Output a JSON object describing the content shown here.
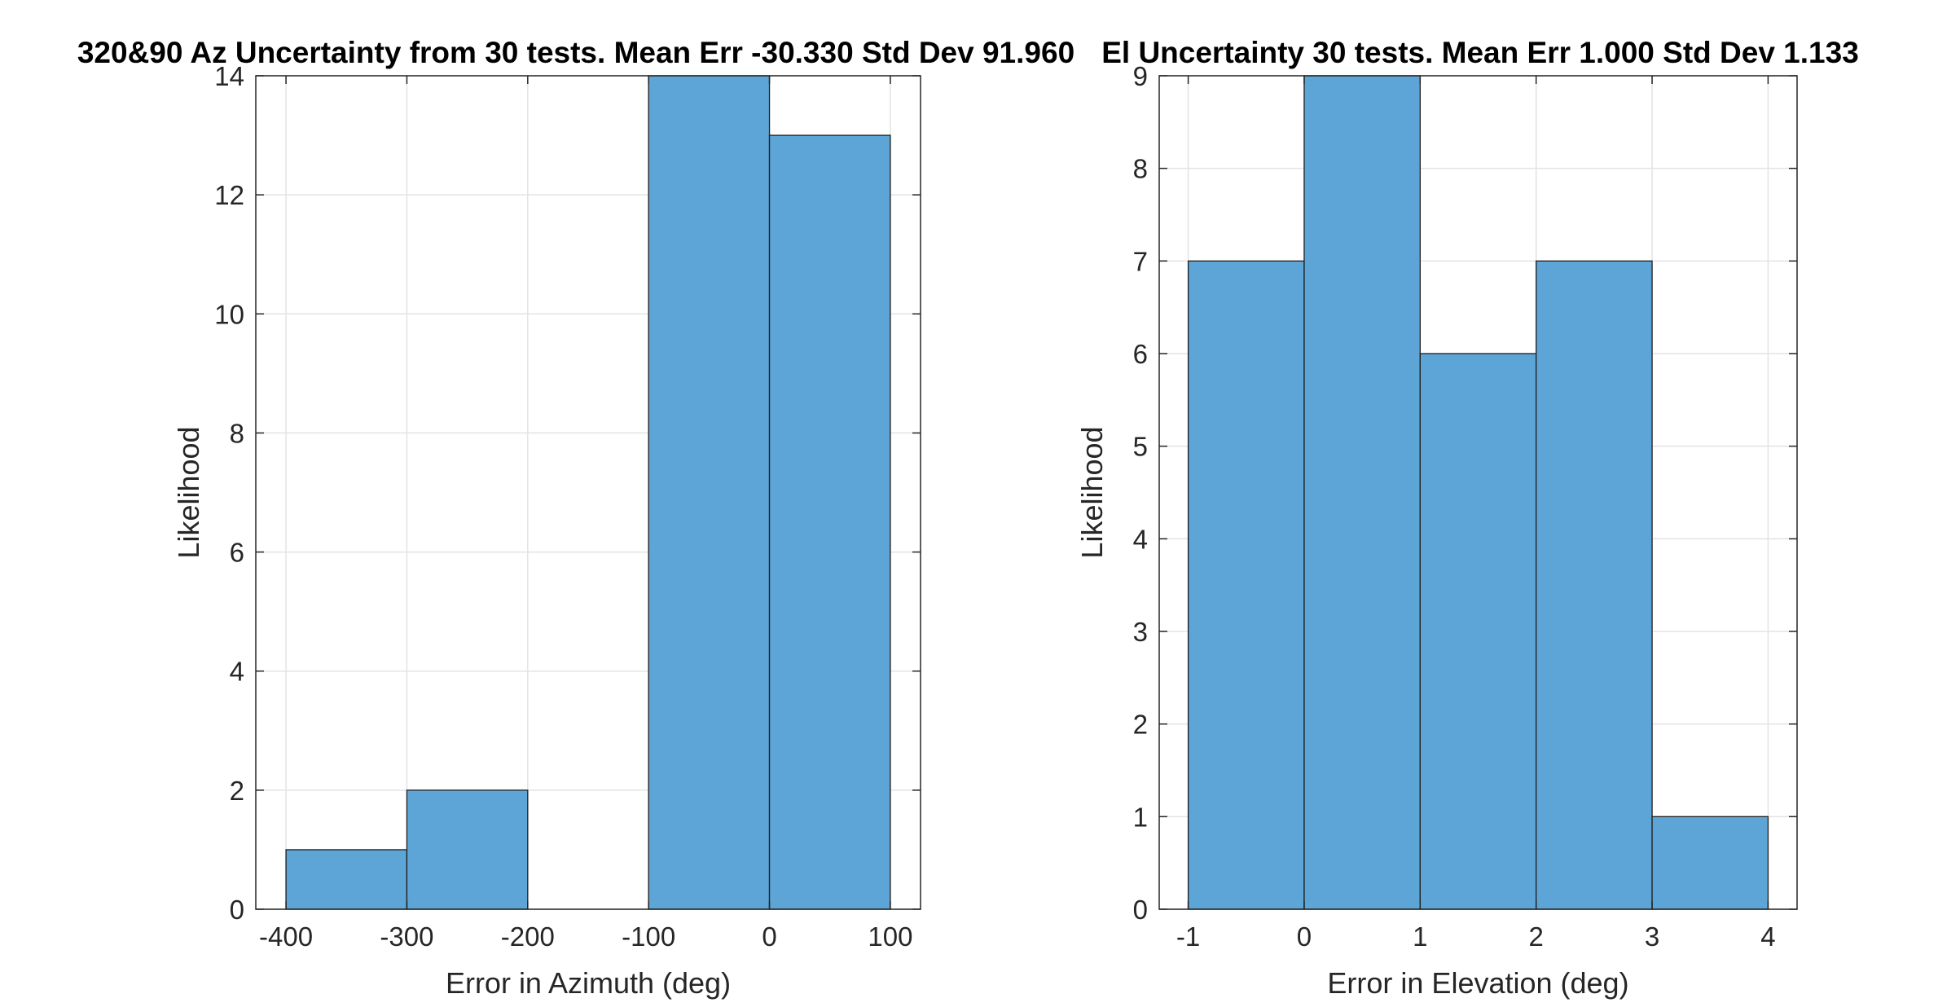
{
  "chart_data": [
    {
      "type": "histogram",
      "title": "320&90 Az Uncertainty from 30 tests. Mean Err -30.330 Std Dev 91.960",
      "xlabel": "Error in Azimuth (deg)",
      "ylabel": "Likelihood",
      "xlim": [
        -425,
        125
      ],
      "ylim": [
        0,
        14
      ],
      "xticks": [
        -400,
        -300,
        -200,
        -100,
        0,
        100
      ],
      "xtick_labels": [
        "-400",
        "-300",
        "-200",
        "-100",
        "0",
        "100"
      ],
      "yticks": [
        0,
        2,
        4,
        6,
        8,
        10,
        12,
        14
      ],
      "ytick_labels": [
        "0",
        "2",
        "4",
        "6",
        "8",
        "10",
        "12",
        "14"
      ],
      "bin_edges": [
        -400,
        -300,
        -200,
        -100,
        0,
        100
      ],
      "values": [
        1,
        2,
        0,
        14,
        13
      ],
      "bar_color": "#5DA5D6",
      "edge_color": "#1f1f1f",
      "grid": true
    },
    {
      "type": "histogram",
      "title": "El Uncertainty 30 tests. Mean Err 1.000 Std Dev 1.133",
      "xlabel": "Error in Elevation (deg)",
      "ylabel": "Likelihood",
      "xlim": [
        -1.25,
        4.25
      ],
      "ylim": [
        0,
        9
      ],
      "xticks": [
        -1,
        0,
        1,
        2,
        3,
        4
      ],
      "xtick_labels": [
        "-1",
        "0",
        "1",
        "2",
        "3",
        "4"
      ],
      "yticks": [
        0,
        1,
        2,
        3,
        4,
        5,
        6,
        7,
        8,
        9
      ],
      "ytick_labels": [
        "0",
        "1",
        "2",
        "3",
        "4",
        "5",
        "6",
        "7",
        "8",
        "9"
      ],
      "bin_edges": [
        -1,
        0,
        1,
        2,
        3,
        4
      ],
      "values": [
        7,
        9,
        6,
        7,
        1
      ],
      "bar_color": "#5DA5D6",
      "edge_color": "#1f1f1f",
      "grid": true
    }
  ]
}
